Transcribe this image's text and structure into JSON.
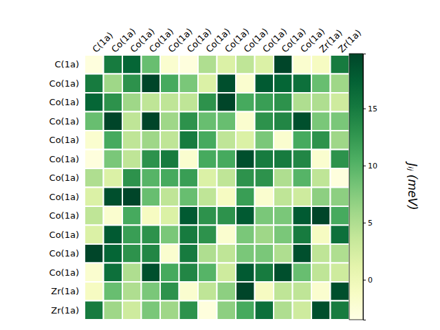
{
  "chart_data": {
    "type": "heatmap",
    "x": [
      "C(1a)",
      "Co(1a)",
      "Co(1a)",
      "Co(1a)",
      "Co(1a)",
      "Co(1a)",
      "Co(1a)",
      "Co(1a)",
      "Co(1a)",
      "Co(1a)",
      "Co(1a)",
      "Co(1a)",
      "Zr(1a)",
      "Zr(1a)"
    ],
    "y": [
      "C(1a)",
      "Co(1a)",
      "Co(1a)",
      "Co(1a)",
      "Co(1a)",
      "Co(1a)",
      "Co(1a)",
      "Co(1a)",
      "Co(1a)",
      "Co(1a)",
      "Co(1a)",
      "Co(1a)",
      "Zr(1a)",
      "Zr(1a)"
    ],
    "values": [
      [
        -3,
        15,
        17,
        9,
        -2,
        -3,
        5,
        2,
        4,
        2,
        20,
        -2,
        -1,
        15
      ],
      [
        15,
        6,
        13,
        20,
        11,
        8,
        2,
        19,
        -2,
        18,
        17,
        16,
        9,
        6
      ],
      [
        17,
        13,
        6,
        4,
        4,
        4,
        13,
        20,
        11,
        12,
        13,
        5,
        5,
        3
      ],
      [
        9,
        20,
        4,
        20,
        6,
        13,
        9,
        9,
        -2,
        13,
        14,
        19,
        8,
        8
      ],
      [
        -2,
        11,
        4,
        6,
        4,
        15,
        11,
        4,
        2,
        8,
        -2,
        11,
        13,
        6
      ],
      [
        -3,
        8,
        4,
        13,
        15,
        -2,
        11,
        11,
        19,
        15,
        15,
        14,
        -2,
        13
      ],
      [
        5,
        2,
        13,
        10,
        11,
        12,
        2,
        4,
        13,
        13,
        5,
        10,
        4,
        -3
      ],
      [
        2,
        19,
        20,
        9,
        4,
        9,
        4,
        -1,
        12,
        -2,
        4,
        3,
        7,
        7
      ],
      [
        4,
        -2,
        11,
        -1,
        2,
        18,
        13,
        13,
        18,
        8,
        8,
        18,
        20,
        11
      ],
      [
        2,
        18,
        12,
        13,
        8,
        15,
        13,
        -2,
        8,
        6,
        8,
        15,
        -1,
        16
      ],
      [
        20,
        17,
        13,
        14,
        -2,
        15,
        5,
        4,
        8,
        8,
        5,
        19,
        4,
        5
      ],
      [
        -2,
        16,
        5,
        19,
        11,
        14,
        10,
        3,
        18,
        15,
        19,
        9,
        4,
        3
      ],
      [
        -1,
        9,
        5,
        8,
        13,
        -2,
        4,
        7,
        20,
        -1,
        4,
        4,
        -2,
        19
      ],
      [
        15,
        6,
        3,
        8,
        6,
        13,
        -3,
        7,
        11,
        16,
        5,
        3,
        19,
        15
      ]
    ],
    "colorbar": {
      "range": [
        -3.5,
        19.8
      ],
      "ticks": [
        0,
        5,
        10,
        15
      ],
      "label": "Jᵢⱼ (meV)"
    }
  }
}
